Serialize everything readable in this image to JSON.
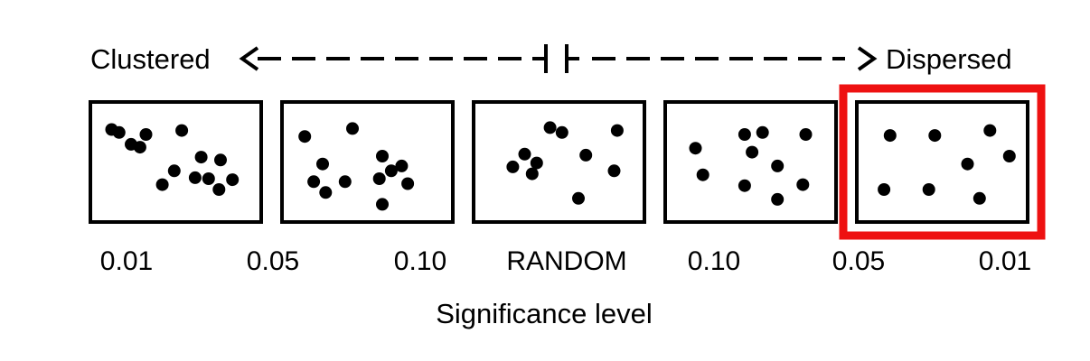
{
  "axis": {
    "left_label": "Clustered",
    "right_label": "Dispersed"
  },
  "panels": [
    {
      "name": "clustered-strong",
      "points": [
        [
          0.12,
          0.8
        ],
        [
          0.2,
          0.68
        ],
        [
          0.3,
          0.78
        ],
        [
          0.41,
          0.27
        ],
        [
          0.49,
          0.41
        ],
        [
          0.07,
          0.83
        ],
        [
          0.26,
          0.65
        ],
        [
          0.54,
          0.82
        ],
        [
          0.67,
          0.55
        ],
        [
          0.72,
          0.33
        ],
        [
          0.8,
          0.52
        ],
        [
          0.88,
          0.32
        ],
        [
          0.79,
          0.22
        ],
        [
          0.63,
          0.34
        ]
      ]
    },
    {
      "name": "clustered-weak",
      "points": [
        [
          0.08,
          0.76
        ],
        [
          0.4,
          0.84
        ],
        [
          0.2,
          0.48
        ],
        [
          0.14,
          0.3
        ],
        [
          0.35,
          0.3
        ],
        [
          0.22,
          0.19
        ],
        [
          0.6,
          0.56
        ],
        [
          0.66,
          0.41
        ],
        [
          0.73,
          0.46
        ],
        [
          0.58,
          0.33
        ],
        [
          0.77,
          0.28
        ],
        [
          0.6,
          0.07
        ]
      ]
    },
    {
      "name": "random",
      "points": [
        [
          0.44,
          0.85
        ],
        [
          0.52,
          0.8
        ],
        [
          0.89,
          0.82
        ],
        [
          0.27,
          0.58
        ],
        [
          0.19,
          0.45
        ],
        [
          0.35,
          0.49
        ],
        [
          0.32,
          0.38
        ],
        [
          0.68,
          0.57
        ],
        [
          0.87,
          0.41
        ],
        [
          0.63,
          0.13
        ]
      ]
    },
    {
      "name": "dispersed-weak",
      "points": [
        [
          0.13,
          0.64
        ],
        [
          0.46,
          0.78
        ],
        [
          0.58,
          0.8
        ],
        [
          0.87,
          0.78
        ],
        [
          0.51,
          0.6
        ],
        [
          0.18,
          0.37
        ],
        [
          0.68,
          0.46
        ],
        [
          0.46,
          0.26
        ],
        [
          0.85,
          0.27
        ],
        [
          0.68,
          0.12
        ]
      ]
    },
    {
      "name": "dispersed-strong",
      "points": [
        [
          0.15,
          0.77
        ],
        [
          0.45,
          0.77
        ],
        [
          0.82,
          0.82
        ],
        [
          0.95,
          0.56
        ],
        [
          0.67,
          0.48
        ],
        [
          0.11,
          0.22
        ],
        [
          0.41,
          0.22
        ],
        [
          0.75,
          0.13
        ]
      ]
    }
  ],
  "highlight_panel": 4,
  "highlight_color": "#ee1111",
  "tick_labels": [
    "0.01",
    "0.05",
    "0.10",
    "RANDOM",
    "0.10",
    "0.05",
    "0.01"
  ],
  "xlabel": "Significance level"
}
